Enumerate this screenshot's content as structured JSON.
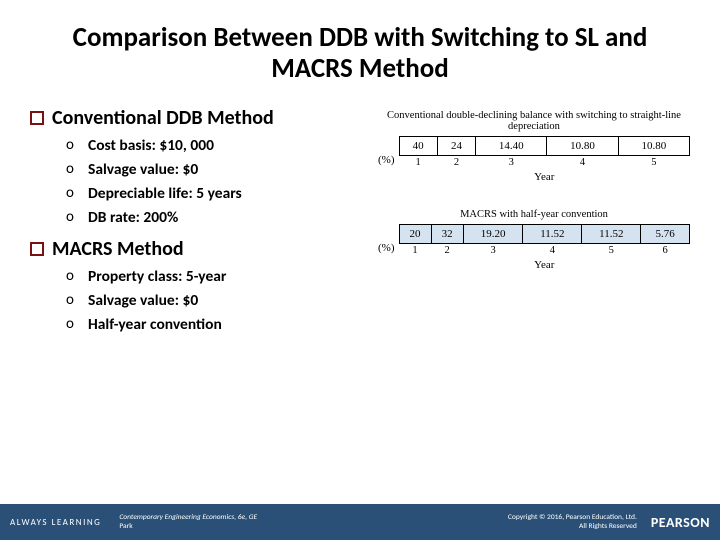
{
  "title": "Comparison Between DDB with Switching to SL and MACRS Method",
  "sections": [
    {
      "heading": "Conventional DDB Method",
      "items": [
        "Cost basis: $10, 000",
        "Salvage value: $0",
        "Depreciable life: 5 years",
        "DB rate: 200%"
      ]
    },
    {
      "heading": "MACRS Method",
      "items": [
        "Property class: 5-year",
        "Salvage value: $0",
        "Half-year convention"
      ]
    }
  ],
  "tables": [
    {
      "caption": "Conventional double-declining balance with switching to straight-line depreciation",
      "pct_label": "(%)",
      "values": [
        "40",
        "24",
        "14.40",
        "10.80",
        "10.80"
      ],
      "years": [
        "1",
        "2",
        "3",
        "4",
        "5"
      ],
      "year_label": "Year",
      "cell_bg": "#ffffff"
    },
    {
      "caption": "MACRS with half-year convention",
      "pct_label": "(%)",
      "values": [
        "20",
        "32",
        "19.20",
        "11.52",
        "11.52",
        "5.76"
      ],
      "years": [
        "1",
        "2",
        "3",
        "4",
        "5",
        "6"
      ],
      "year_label": "Year",
      "cell_bg": "#d5e3f0"
    }
  ],
  "footer": {
    "always": "ALWAYS LEARNING",
    "book": "Contemporary Engineering Economics, 6e, GE",
    "author": "Park",
    "copyright_line1": "Copyright © 2016, Pearson Education, Ltd.",
    "copyright_line2": "All Rights Reserved",
    "logo": "PEARSON"
  },
  "colors": {
    "checkbox_border": "#7a1010",
    "footer_bg": "#2a5078",
    "macrs_cell_bg": "#d5e3f0"
  }
}
